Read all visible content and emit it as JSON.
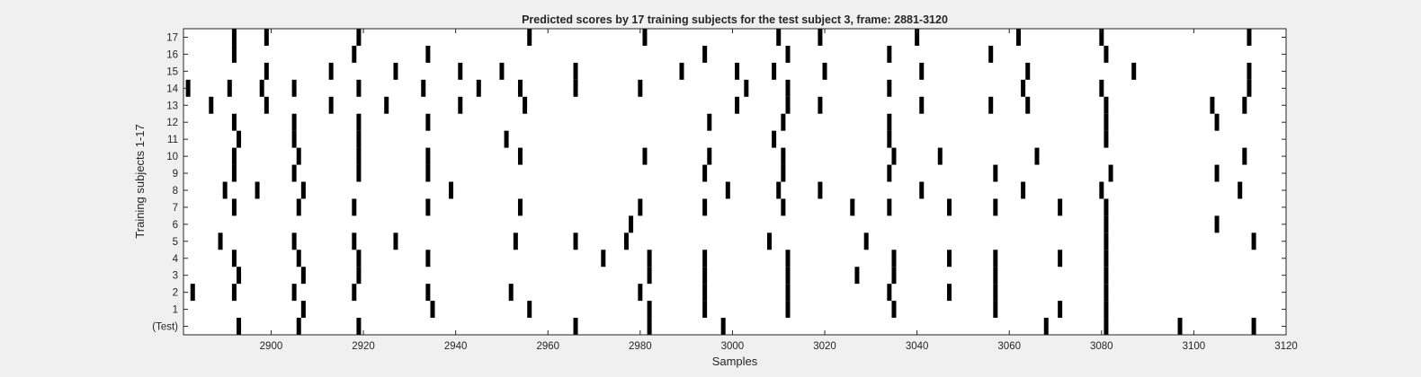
{
  "chart_data": {
    "type": "scatter",
    "title": "Predicted scores by 17 training subjects for the test subject 3, frame: 2881-3120",
    "xlabel": "Samples",
    "ylabel": "Training subjects 1-17",
    "xlim": [
      2881,
      3120
    ],
    "x_ticks": [
      2900,
      2920,
      2940,
      2960,
      2980,
      3000,
      3020,
      3040,
      3060,
      3080,
      3100,
      3120
    ],
    "y_tick_labels": [
      "(Test)",
      "1",
      "2",
      "3",
      "4",
      "5",
      "6",
      "7",
      "8",
      "9",
      "10",
      "11",
      "12",
      "13",
      "14",
      "15",
      "16",
      "17"
    ],
    "grid": false,
    "legend": "none",
    "mark_color": "#000000",
    "rows": [
      {
        "label": "(Test)",
        "x": [
          2893,
          2906,
          2919,
          2966,
          2982,
          2998,
          3068,
          3081,
          3097,
          3113
        ]
      },
      {
        "label": "1",
        "x": [
          2907,
          2935,
          2956,
          2982,
          2994,
          3012,
          3035,
          3057,
          3071,
          3081
        ]
      },
      {
        "label": "2",
        "x": [
          2883,
          2892,
          2905,
          2918,
          2934,
          2952,
          2980,
          2994,
          3012,
          3034,
          3047,
          3057,
          3081
        ]
      },
      {
        "label": "3",
        "x": [
          2893,
          2907,
          2919,
          2982,
          2994,
          3012,
          3027,
          3035,
          3057,
          3081
        ]
      },
      {
        "label": "4",
        "x": [
          2892,
          2906,
          2919,
          2934,
          2972,
          2982,
          2994,
          3012,
          3035,
          3047,
          3057,
          3071,
          3081
        ]
      },
      {
        "label": "5",
        "x": [
          2889,
          2905,
          2918,
          2927,
          2953,
          2966,
          2977,
          3008,
          3029,
          3081,
          3113
        ]
      },
      {
        "label": "6",
        "x": [
          2978,
          3081,
          3105
        ]
      },
      {
        "label": "7",
        "x": [
          2892,
          2906,
          2918,
          2934,
          2954,
          2980,
          2994,
          3011,
          3026,
          3034,
          3047,
          3057,
          3071,
          3081
        ]
      },
      {
        "label": "8",
        "x": [
          2890,
          2897,
          2907,
          2939,
          2999,
          3010,
          3019,
          3041,
          3063,
          3080,
          3110
        ]
      },
      {
        "label": "9",
        "x": [
          2892,
          2905,
          2919,
          2934,
          2994,
          3011,
          3034,
          3057,
          3082,
          3105
        ]
      },
      {
        "label": "10",
        "x": [
          2892,
          2906,
          2919,
          2934,
          2954,
          2981,
          2995,
          3011,
          3035,
          3045,
          3066,
          3111
        ]
      },
      {
        "label": "11",
        "x": [
          2893,
          2905,
          2919,
          2951,
          3009,
          3034,
          3081
        ]
      },
      {
        "label": "12",
        "x": [
          2892,
          2905,
          2919,
          2934,
          2995,
          3011,
          3034,
          3081,
          3105
        ]
      },
      {
        "label": "13",
        "x": [
          2887,
          2899,
          2913,
          2925,
          2941,
          2955,
          3001,
          3012,
          3019,
          3041,
          3056,
          3064,
          3081,
          3104,
          3111
        ]
      },
      {
        "label": "14",
        "x": [
          2882,
          2891,
          2898,
          2905,
          2919,
          2933,
          2945,
          2954,
          2966,
          2980,
          3003,
          3012,
          3034,
          3063,
          3080,
          3112
        ]
      },
      {
        "label": "15",
        "x": [
          2899,
          2913,
          2927,
          2941,
          2950,
          2966,
          2989,
          3001,
          3009,
          3020,
          3041,
          3064,
          3087,
          3112
        ]
      },
      {
        "label": "16",
        "x": [
          2892,
          2918,
          2934,
          2994,
          3012,
          3034,
          3056,
          3081
        ]
      },
      {
        "label": "17",
        "x": [
          2892,
          2899,
          2919,
          2956,
          2981,
          3010,
          3019,
          3040,
          3062,
          3080,
          3112
        ]
      }
    ]
  }
}
